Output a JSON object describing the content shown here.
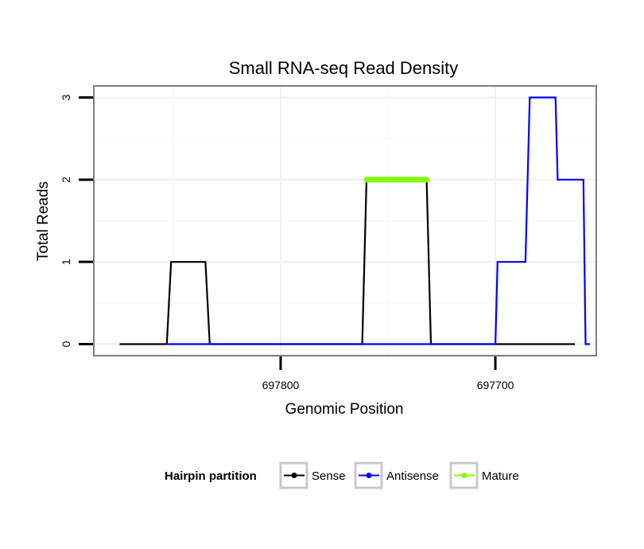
{
  "chart_data": {
    "type": "line",
    "title": "Small RNA-seq Read Density",
    "xlabel": "Genomic Position",
    "ylabel": "Total Reads",
    "x_reversed": true,
    "xlim": [
      697887,
      697653
    ],
    "ylim": [
      -0.14,
      3.14
    ],
    "x_ticks": [
      697800,
      697700
    ],
    "x_tick_labels": [
      "697800",
      "697700"
    ],
    "y_ticks": [
      0,
      1,
      2,
      3
    ],
    "y_tick_labels": [
      "0",
      "1",
      "2",
      "3"
    ],
    "grid": true,
    "legend": {
      "position": "bottom",
      "title": "Hairpin partition",
      "entries": [
        {
          "label": "Sense",
          "color": "#000000"
        },
        {
          "label": "Antisense",
          "color": "#0000ff"
        },
        {
          "label": "Mature",
          "color": "#7fff00"
        }
      ]
    },
    "series": [
      {
        "name": "Sense",
        "color": "#000000",
        "x": [
          697875,
          697853,
          697851,
          697835,
          697833,
          697762,
          697760,
          697732,
          697730,
          697663
        ],
        "y": [
          0,
          0,
          1,
          1,
          0,
          0,
          2,
          2,
          0,
          0
        ]
      },
      {
        "name": "Antisense",
        "color": "#0000ff",
        "x": [
          697853,
          697835,
          697762,
          697732,
          697700,
          697699,
          697686,
          697684,
          697672,
          697671,
          697659,
          697658,
          697656
        ],
        "y": [
          0,
          0,
          0,
          0,
          0,
          1,
          1,
          3,
          3,
          2,
          2,
          0,
          0
        ]
      },
      {
        "name": "Mature",
        "color": "#7fff00",
        "x": [
          697760,
          697732
        ],
        "y": [
          2,
          2
        ]
      }
    ]
  }
}
